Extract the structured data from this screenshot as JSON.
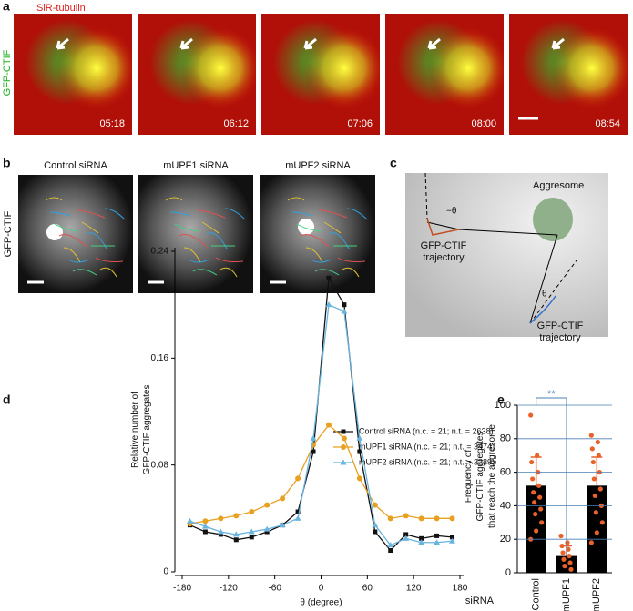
{
  "panel_a": {
    "letter": "a",
    "channel_top": "SiR-tubulin",
    "channel_left": "GFP-CTIF",
    "timestamps": [
      "05:18",
      "06:12",
      "07:06",
      "08:00",
      "08:54"
    ]
  },
  "panel_b": {
    "letter": "b",
    "row_label": "GFP-CTIF",
    "columns": [
      "Control siRNA",
      "mUPF1 siRNA",
      "mUPF2 siRNA"
    ]
  },
  "panel_c": {
    "letter": "c",
    "aggresome": "Aggresome",
    "angle_neg": "−θ",
    "angle_pos": "θ",
    "trajectory_1": [
      "GFP-CTIF",
      "trajectory"
    ],
    "trajectory_2": [
      "GFP-CTIF",
      "trajectory"
    ]
  },
  "chart_data": [
    {
      "type": "line",
      "panel_letter": "d",
      "ylabel": [
        "Relative number of",
        "GFP-CTIF aggregates"
      ],
      "xlabel": "θ (degree)",
      "x": [
        -170,
        -150,
        -130,
        -110,
        -90,
        -70,
        -50,
        -30,
        -10,
        10,
        30,
        50,
        70,
        90,
        110,
        130,
        150,
        170
      ],
      "xlim": [
        -180,
        180
      ],
      "xticks": [
        -180,
        -120,
        -60,
        0,
        60,
        120,
        180
      ],
      "ylim": [
        0,
        0.24
      ],
      "yticks": [
        0,
        0.08,
        0.16,
        0.24
      ],
      "series": [
        {
          "name": "Control siRNA (n.c. = 21; n.t. = 2638)",
          "color": "#111111",
          "marker": "square",
          "values": [
            0.035,
            0.03,
            0.028,
            0.024,
            0.026,
            0.03,
            0.035,
            0.045,
            0.09,
            0.22,
            0.2,
            0.09,
            0.03,
            0.016,
            0.028,
            0.025,
            0.027,
            0.026
          ]
        },
        {
          "name": "mUPF1 siRNA (n.c. = 21; n.t. = 3474)",
          "color": "#e8a020",
          "marker": "circle",
          "values": [
            0.036,
            0.038,
            0.04,
            0.042,
            0.045,
            0.05,
            0.055,
            0.07,
            0.095,
            0.11,
            0.1,
            0.07,
            0.05,
            0.04,
            0.042,
            0.04,
            0.04,
            0.04
          ]
        },
        {
          "name": "mUPF2 siRNA (n.c. = 21; n.t. = 3289)",
          "color": "#6ab4e0",
          "marker": "triangle",
          "values": [
            0.038,
            0.034,
            0.03,
            0.028,
            0.03,
            0.032,
            0.035,
            0.04,
            0.1,
            0.2,
            0.195,
            0.1,
            0.035,
            0.02,
            0.025,
            0.022,
            0.022,
            0.023
          ]
        }
      ]
    },
    {
      "type": "bar",
      "panel_letter": "e",
      "ylabel": [
        "Frequency of",
        "GFP-CTIF aggregates",
        "that reach the aggresome"
      ],
      "xlabel": "siRNA",
      "significance": "**",
      "categories": [
        "Control",
        "mUPF1",
        "mUPF2"
      ],
      "values": [
        52,
        10,
        52
      ],
      "errors": [
        17,
        6,
        17
      ],
      "color": "#000000",
      "point_color": "#e8622a",
      "grid": true,
      "grid_color": "#4a7fb5",
      "ylim": [
        0,
        100
      ],
      "yticks": [
        0,
        20,
        40,
        60,
        80,
        100
      ],
      "points": [
        [
          94,
          70,
          66,
          60,
          56,
          52,
          48,
          45,
          42,
          38,
          35,
          30,
          25,
          20
        ],
        [
          22,
          18,
          16,
          14,
          12,
          10,
          8,
          6,
          4,
          2
        ],
        [
          82,
          78,
          74,
          70,
          66,
          60,
          56,
          50,
          46,
          40,
          36,
          30,
          24,
          18
        ]
      ]
    }
  ]
}
